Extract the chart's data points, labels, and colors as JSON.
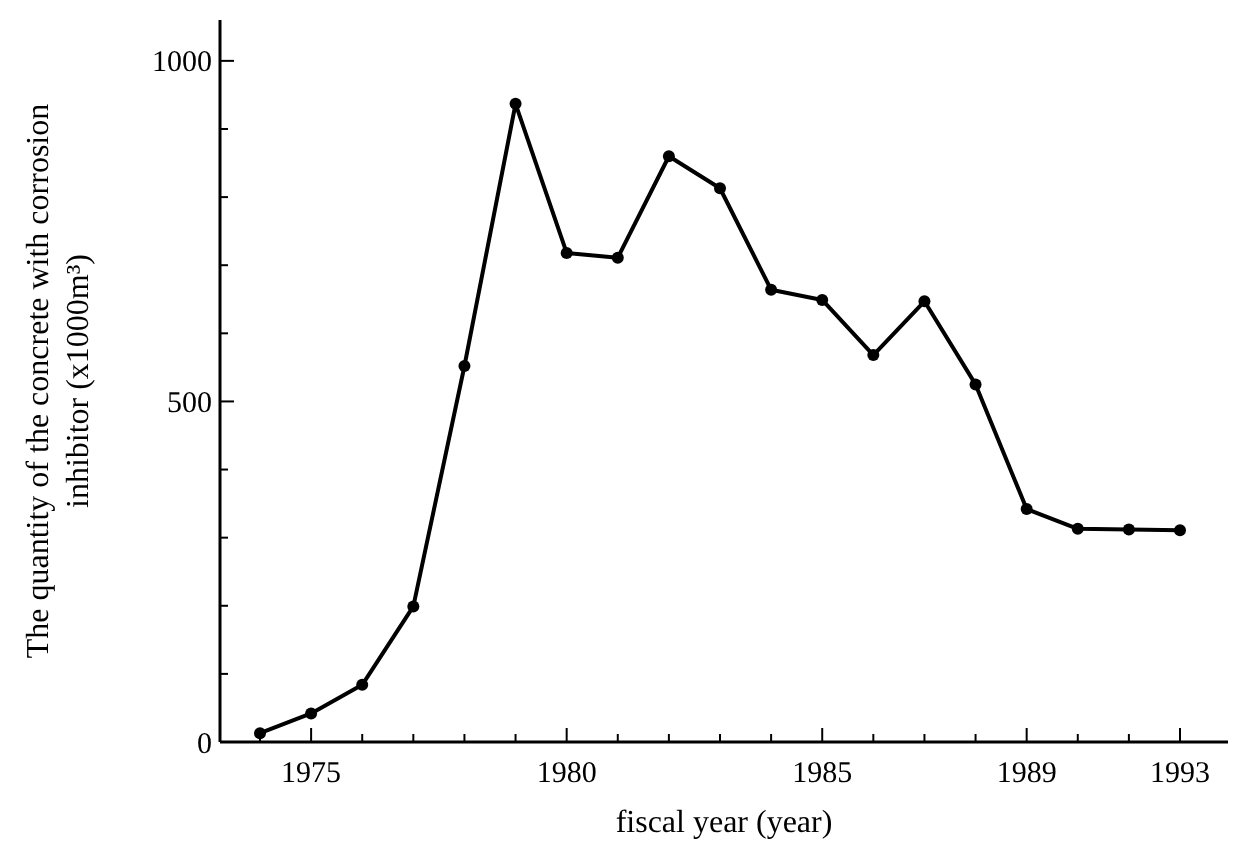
{
  "chart_data": {
    "type": "line",
    "xlabel": "fiscal year (year)",
    "ylabel": "The quantity of the concrete with corrosion inhibitor (x1000m³)",
    "categories": [
      null,
      "1975",
      null,
      null,
      null,
      null,
      "1980",
      null,
      null,
      null,
      null,
      "1985",
      null,
      null,
      null,
      "1989",
      null,
      null,
      "1993"
    ],
    "series": [
      {
        "color": "#000000",
        "values": [
          13,
          42,
          84,
          199,
          552,
          937,
          718,
          711,
          860,
          813,
          664,
          649,
          568,
          647,
          525,
          342,
          313,
          312,
          311
        ]
      }
    ],
    "ylim": [
      0,
      1060
    ],
    "yticks": [
      0,
      {
        "value": 100,
        "label": null
      },
      {
        "value": 200,
        "label": null
      },
      {
        "value": 300,
        "label": null
      },
      {
        "value": 400,
        "label": null
      },
      500,
      {
        "value": 600,
        "label": null
      },
      {
        "value": 700,
        "label": null
      },
      {
        "value": 800,
        "label": null
      },
      {
        "value": 900,
        "label": null
      },
      1000
    ],
    "marker": "circle",
    "line_style": "solid",
    "grid": false
  }
}
